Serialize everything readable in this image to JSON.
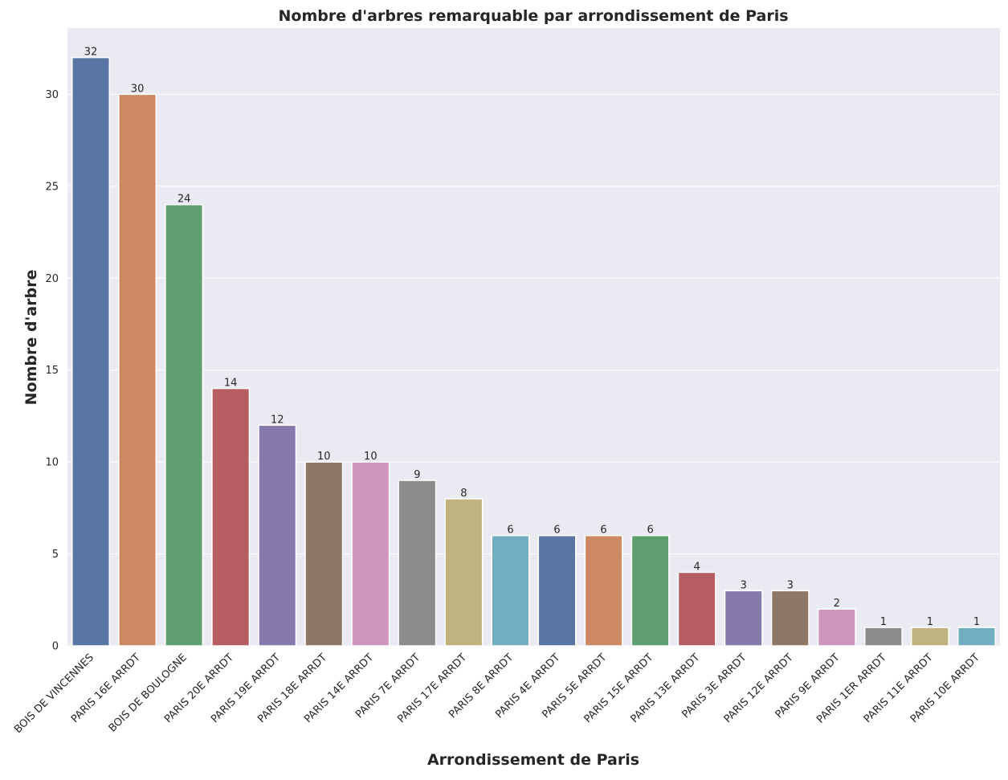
{
  "chart_data": {
    "type": "bar",
    "title": "Nombre d'arbres remarquable par arrondissement de Paris",
    "xlabel": "Arrondissement de Paris",
    "ylabel": "Nombre d'arbre",
    "ylim": [
      0,
      33.6
    ],
    "yticks": [
      0,
      5,
      10,
      15,
      20,
      25,
      30
    ],
    "grid": true,
    "categories": [
      "BOIS DE VINCENNES",
      "PARIS 16E ARRDT",
      "BOIS DE BOULOGNE",
      "PARIS 20E ARRDT",
      "PARIS 19E ARRDT",
      "PARIS 18E ARRDT",
      "PARIS 14E ARRDT",
      "PARIS 7E ARRDT",
      "PARIS 17E ARRDT",
      "PARIS 8E ARRDT",
      "PARIS 4E ARRDT",
      "PARIS 5E ARRDT",
      "PARIS 15E ARRDT",
      "PARIS 13E ARRDT",
      "PARIS 3E ARRDT",
      "PARIS 12E ARRDT",
      "PARIS 9E ARRDT",
      "PARIS 1ER ARRDT",
      "PARIS 11E ARRDT",
      "PARIS 10E ARRDT"
    ],
    "values": [
      32,
      30,
      24,
      14,
      12,
      10,
      10,
      9,
      8,
      6,
      6,
      6,
      6,
      4,
      3,
      3,
      2,
      1,
      1,
      1
    ],
    "value_labels": [
      "32",
      "30",
      "24",
      "14",
      "12",
      "10",
      "10",
      "9",
      "8",
      "6",
      "6",
      "6",
      "6",
      "4",
      "3",
      "3",
      "2",
      "1",
      "1",
      "1"
    ],
    "colors": [
      "#5975a4",
      "#cc8963",
      "#5f9e6e",
      "#b55d60",
      "#857aab",
      "#8d7866",
      "#d095bf",
      "#8c8c8c",
      "#c1b37f",
      "#71aec0",
      "#5975a4",
      "#cc8963",
      "#5f9e6e",
      "#b55d60",
      "#857aab",
      "#8d7866",
      "#d095bf",
      "#8c8c8c",
      "#c1b37f",
      "#71aec0"
    ],
    "background_color": "#eaeaf2",
    "grid_color": "#ffffff"
  }
}
